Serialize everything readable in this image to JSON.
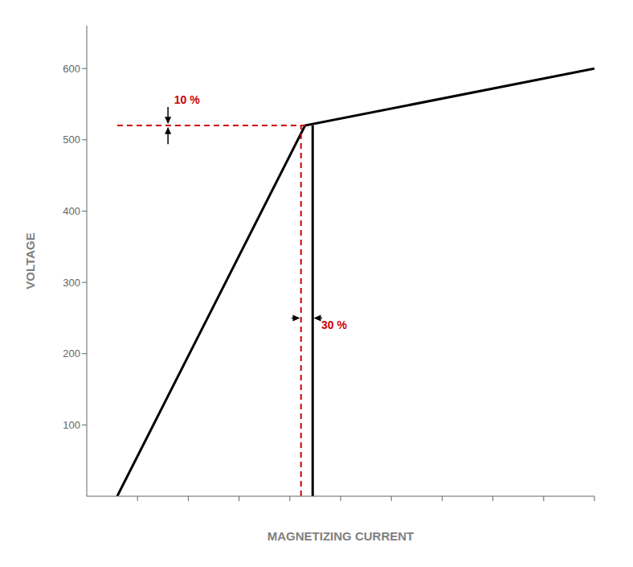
{
  "chart_data": {
    "type": "line",
    "xlabel": "MAGNETIZING CURRENT",
    "ylabel": "VOLTAGE",
    "xlim": [
      0,
      10
    ],
    "ylim": [
      0,
      660
    ],
    "xticks": [
      1,
      2,
      3,
      4,
      5,
      6,
      7,
      8,
      9,
      10
    ],
    "yticks": [
      100,
      200,
      300,
      400,
      500,
      600
    ],
    "tick_labels": "y",
    "grid": false,
    "series": [
      {
        "x": [
          0.6,
          4.3,
          10
        ],
        "values": [
          0,
          520,
          600
        ],
        "color": "#000000",
        "line_style": "solid"
      },
      {
        "x": [
          0.6,
          4.3
        ],
        "values": [
          520,
          520
        ],
        "color": "#cc0000",
        "line_style": "dashed"
      },
      {
        "x": [
          4.22,
          4.22
        ],
        "values": [
          0,
          520
        ],
        "color": "#cc0000",
        "line_style": "dashed"
      },
      {
        "x": [
          4.45,
          4.45
        ],
        "values": [
          0,
          520
        ],
        "color": "#000000",
        "line_style": "solid"
      }
    ],
    "annotations": [
      {
        "text": "10 %",
        "x": 1.72,
        "y": 551,
        "color": "#cc0000",
        "arrows": [
          {
            "from": [
              1.6,
              546
            ],
            "to": [
              1.6,
              522
            ]
          },
          {
            "from": [
              1.6,
              494
            ],
            "to": [
              1.6,
              518
            ]
          }
        ]
      },
      {
        "text": "30 %",
        "x": 4.62,
        "y": 235,
        "color": "#cc0000",
        "arrows": [
          {
            "from": [
              4.035,
              250
            ],
            "to": [
              4.2,
              250
            ]
          },
          {
            "from": [
              4.635,
              250
            ],
            "to": [
              4.47,
              250
            ]
          }
        ]
      }
    ]
  }
}
